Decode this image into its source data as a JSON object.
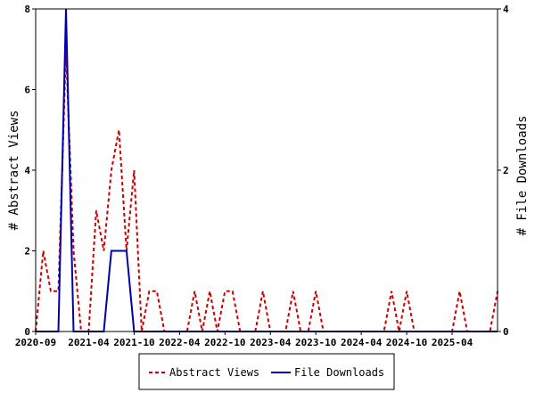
{
  "chart_data": {
    "type": "line",
    "title": "",
    "ylabel_left": "# Abstract Views",
    "ylabel_right": "# File Downloads",
    "ylim_left": [
      0,
      8
    ],
    "ylim_right": [
      0,
      4
    ],
    "yticks_left": [
      "0",
      "2",
      "4",
      "6",
      "8"
    ],
    "yticks_right": [
      "0",
      "2",
      "4"
    ],
    "xlim": [
      "2020-09",
      "2025-10"
    ],
    "xticks": [
      "2020-09",
      "2021-04",
      "2021-10",
      "2022-04",
      "2022-10",
      "2023-04",
      "2023-10",
      "2024-04",
      "2024-10",
      "2025-04"
    ],
    "grid": false,
    "legend_position": "bottom",
    "series": [
      {
        "name": "Abstract Views",
        "axis": "left",
        "color": "#cc0000",
        "style": "dashed",
        "x": [
          "2020-09",
          "2020-10",
          "2020-11",
          "2020-12",
          "2021-01",
          "2021-02",
          "2021-03",
          "2021-04",
          "2021-05",
          "2021-06",
          "2021-07",
          "2021-08",
          "2021-09",
          "2021-10",
          "2021-11",
          "2021-12",
          "2022-01",
          "2022-02",
          "2022-03",
          "2022-04",
          "2022-05",
          "2022-06",
          "2022-07",
          "2022-08",
          "2022-09",
          "2022-10",
          "2022-11",
          "2022-12",
          "2023-01",
          "2023-02",
          "2023-03",
          "2023-04",
          "2023-05",
          "2023-06",
          "2023-07",
          "2023-08",
          "2023-09",
          "2023-10",
          "2023-11",
          "2023-12",
          "2024-01",
          "2024-02",
          "2024-03",
          "2024-04",
          "2024-05",
          "2024-06",
          "2024-07",
          "2024-08",
          "2024-09",
          "2024-10",
          "2024-11",
          "2024-12",
          "2025-01",
          "2025-02",
          "2025-03",
          "2025-04",
          "2025-05",
          "2025-06",
          "2025-07",
          "2025-08",
          "2025-09",
          "2025-10"
        ],
        "values": [
          0,
          2,
          1,
          1,
          7,
          2,
          0,
          0,
          3,
          2,
          4,
          5,
          2,
          4,
          0,
          1,
          1,
          0,
          0,
          0,
          0,
          1,
          0,
          1,
          0,
          1,
          1,
          0,
          0,
          0,
          1,
          0,
          0,
          0,
          1,
          0,
          0,
          1,
          0,
          0,
          0,
          0,
          0,
          0,
          0,
          0,
          0,
          1,
          0,
          1,
          0,
          0,
          0,
          0,
          0,
          0,
          1,
          0,
          0,
          0,
          0,
          1
        ]
      },
      {
        "name": "File Downloads",
        "axis": "right",
        "color": "#0000aa",
        "style": "solid",
        "x": [
          "2020-09",
          "2020-10",
          "2020-11",
          "2020-12",
          "2021-01",
          "2021-02",
          "2021-03",
          "2021-04",
          "2021-05",
          "2021-06",
          "2021-07",
          "2021-08",
          "2021-09",
          "2021-10",
          "2021-11",
          "2021-12",
          "2022-01",
          "2022-02",
          "2022-03",
          "2022-04",
          "2022-05",
          "2022-06",
          "2022-07",
          "2022-08",
          "2022-09",
          "2022-10",
          "2022-11",
          "2022-12",
          "2023-01",
          "2023-02",
          "2023-03",
          "2023-04",
          "2023-05",
          "2023-06",
          "2023-07",
          "2023-08",
          "2023-09",
          "2023-10",
          "2023-11",
          "2023-12",
          "2024-01",
          "2024-02",
          "2024-03",
          "2024-04",
          "2024-05",
          "2024-06",
          "2024-07",
          "2024-08",
          "2024-09",
          "2024-10",
          "2024-11",
          "2024-12",
          "2025-01",
          "2025-02",
          "2025-03",
          "2025-04",
          "2025-05",
          "2025-06",
          "2025-07",
          "2025-08",
          "2025-09",
          "2025-10"
        ],
        "values": [
          0,
          0,
          0,
          0,
          4,
          0,
          0,
          0,
          0,
          0,
          1,
          1,
          1,
          0,
          0,
          0,
          0,
          0,
          0,
          0,
          0,
          0,
          0,
          0,
          0,
          0,
          0,
          0,
          0,
          0,
          0,
          0,
          0,
          0,
          0,
          0,
          0,
          0,
          0,
          0,
          0,
          0,
          0,
          0,
          0,
          0,
          0,
          0,
          0,
          0,
          0,
          0,
          0,
          0,
          0,
          0,
          0,
          0,
          0,
          0,
          0,
          0
        ]
      }
    ]
  }
}
